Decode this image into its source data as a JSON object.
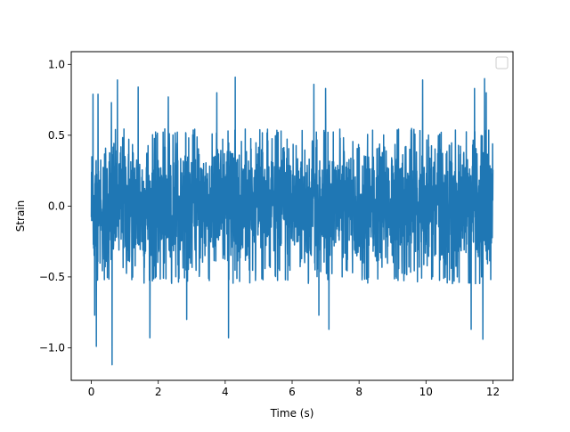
{
  "chart_data": {
    "type": "line",
    "title": "",
    "xlabel": "Time (s)",
    "ylabel": "Strain",
    "xlim": [
      -0.6,
      12.6
    ],
    "ylim": [
      -1.23,
      1.09
    ],
    "xticks": [
      0,
      2,
      4,
      6,
      8,
      10,
      12
    ],
    "xtick_labels": [
      "0",
      "2",
      "4",
      "6",
      "8",
      "10",
      "12"
    ],
    "yticks": [
      -1.0,
      -0.5,
      0.0,
      0.5,
      1.0
    ],
    "ytick_labels": [
      "−1.0",
      "−0.5",
      "0.0",
      "0.5",
      "1.0"
    ],
    "grid": false,
    "legend": {
      "placement": "upper right",
      "entries": []
    },
    "series": [
      {
        "color": "#1f77b4",
        "x_start": 0.0,
        "x_end": 12.0,
        "envelope": {
          "typical_min": -0.5,
          "typical_max": 0.5
        },
        "peaks": [
          {
            "x": 0.05,
            "y": 0.79
          },
          {
            "x": 0.1,
            "y": -0.77
          },
          {
            "x": 0.15,
            "y": -0.99
          },
          {
            "x": 0.2,
            "y": 0.79
          },
          {
            "x": 0.6,
            "y": 0.73
          },
          {
            "x": 0.62,
            "y": -1.12
          },
          {
            "x": 0.78,
            "y": 0.89
          },
          {
            "x": 1.4,
            "y": 0.84
          },
          {
            "x": 1.75,
            "y": -0.93
          },
          {
            "x": 2.3,
            "y": 0.77
          },
          {
            "x": 2.85,
            "y": -0.8
          },
          {
            "x": 3.75,
            "y": 0.8
          },
          {
            "x": 4.1,
            "y": -0.93
          },
          {
            "x": 4.3,
            "y": 0.91
          },
          {
            "x": 6.65,
            "y": 0.86
          },
          {
            "x": 6.8,
            "y": -0.77
          },
          {
            "x": 7.0,
            "y": 0.83
          },
          {
            "x": 7.1,
            "y": -0.87
          },
          {
            "x": 9.9,
            "y": 0.89
          },
          {
            "x": 11.35,
            "y": -0.87
          },
          {
            "x": 11.45,
            "y": 0.83
          },
          {
            "x": 11.7,
            "y": -0.94
          },
          {
            "x": 11.75,
            "y": 0.9
          },
          {
            "x": 11.8,
            "y": 0.8
          }
        ]
      }
    ]
  }
}
